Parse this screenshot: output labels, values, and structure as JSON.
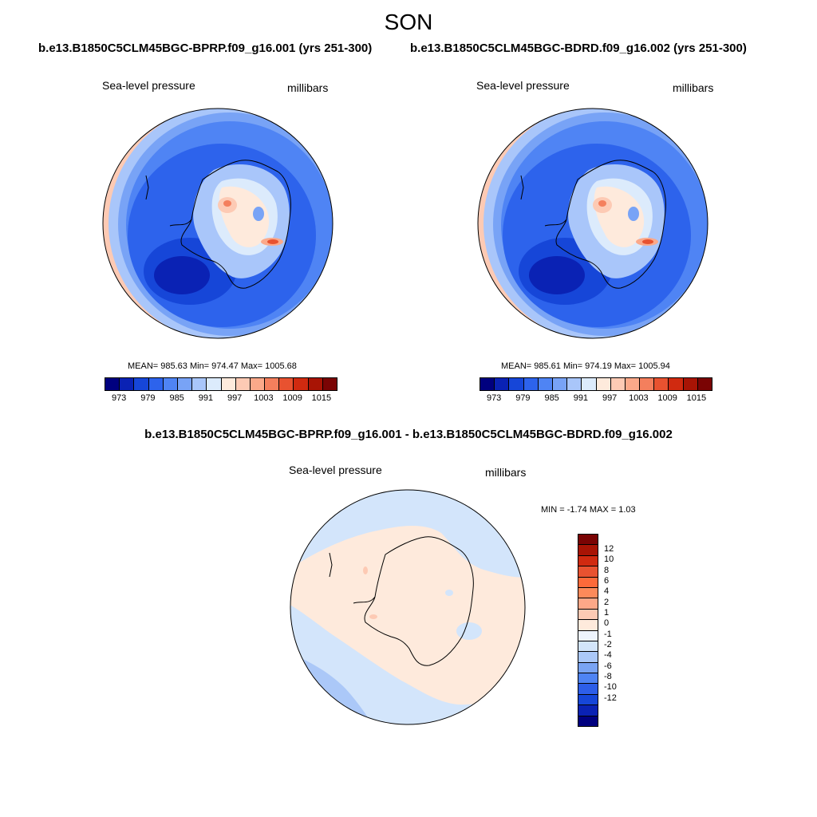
{
  "season": "SON",
  "panels": [
    {
      "case": "b.e13.B1850C5CLM45BGC-BPRP.f09_g16.001 (yrs 251-300)",
      "variable": "Sea-level pressure",
      "units": "millibars",
      "stats": "MEAN= 985.63  Min= 974.47  Max= 1005.68"
    },
    {
      "case": "b.e13.B1850C5CLM45BGC-BDRD.f09_g16.002 (yrs 251-300)",
      "variable": "Sea-level pressure",
      "units": "millibars",
      "stats": "MEAN= 985.61  Min= 974.19  Max= 1005.94"
    }
  ],
  "colorbar": {
    "colors": [
      "#00007f",
      "#0a22b4",
      "#1646d8",
      "#2d63ec",
      "#4f84f4",
      "#78a3f6",
      "#a9c6fa",
      "#dcebfc",
      "#feeadc",
      "#fdcab4",
      "#fba98a",
      "#f47f5d",
      "#e85230",
      "#d02a10",
      "#a81405",
      "#7a0404"
    ],
    "ticks": [
      "973",
      "979",
      "985",
      "991",
      "997",
      "1003",
      "1009",
      "1015"
    ]
  },
  "difference": {
    "title": "b.e13.B1850C5CLM45BGC-BPRP.f09_g16.001 - b.e13.B1850C5CLM45BGC-BDRD.f09_g16.002",
    "variable": "Sea-level pressure",
    "units": "millibars",
    "stats": "MIN =  -1.74 MAX =   1.03",
    "colors": [
      "#7a0404",
      "#a81405",
      "#d02a10",
      "#e85230",
      "#fd6a3a",
      "#fd8a5a",
      "#fda888",
      "#fdcab4",
      "#feeadc",
      "#eef4fd",
      "#d3e5fb",
      "#abc8f8",
      "#7aa4f3",
      "#4f84f4",
      "#2d5ee8",
      "#1646d8",
      "#0a22b4",
      "#00007f"
    ],
    "ticks": [
      "12",
      "10",
      "8",
      "6",
      "4",
      "2",
      "1",
      "0",
      "-1",
      "-2",
      "-4",
      "-6",
      "-8",
      "-10",
      "-12"
    ]
  }
}
